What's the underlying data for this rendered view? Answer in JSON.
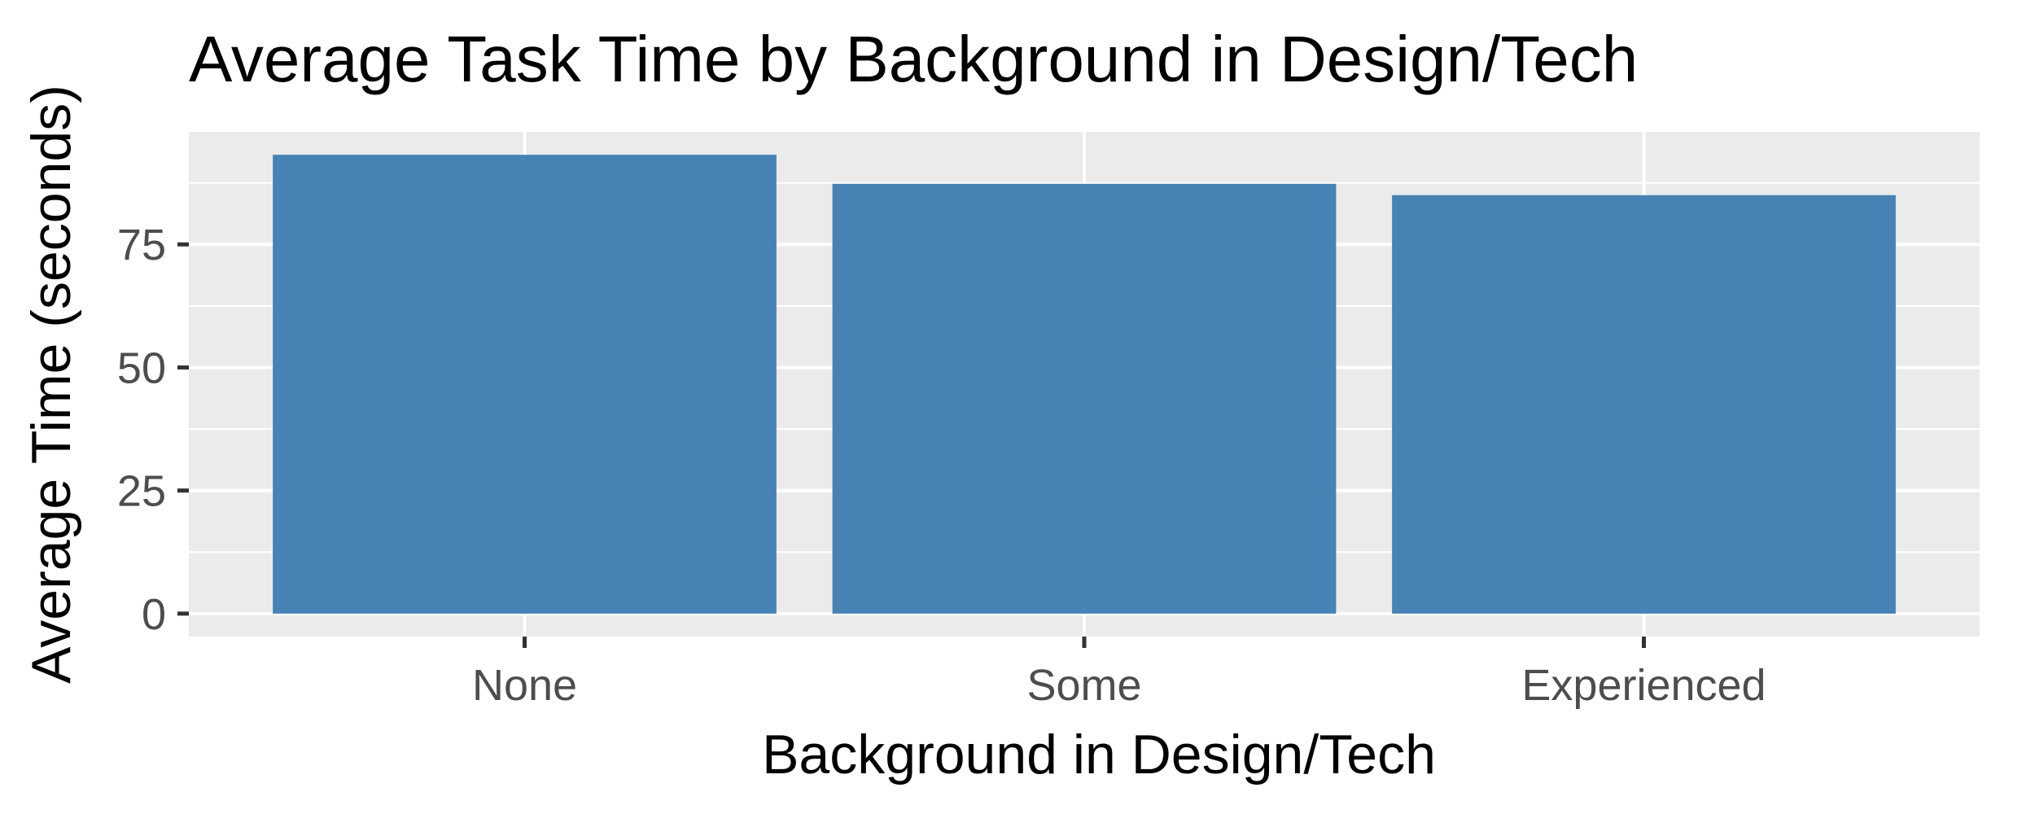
{
  "chart_data": {
    "type": "bar",
    "title": "Average Task Time by Background in Design/Tech",
    "xlabel": "Background in Design/Tech",
    "ylabel": "Average Time (seconds)",
    "categories": [
      "None",
      "Some",
      "Experienced"
    ],
    "values": [
      93.2,
      87.3,
      85.0
    ],
    "ylim": [
      -4.66,
      97.86
    ],
    "yticks": [
      0,
      25,
      50,
      75
    ],
    "grid": true,
    "legend": "none",
    "colors": {
      "bar": "#4682b4",
      "panel": "#ebebeb",
      "grid": "#ffffff",
      "tick_label": "#4d4d4d",
      "axis_tick": "#333333"
    }
  }
}
